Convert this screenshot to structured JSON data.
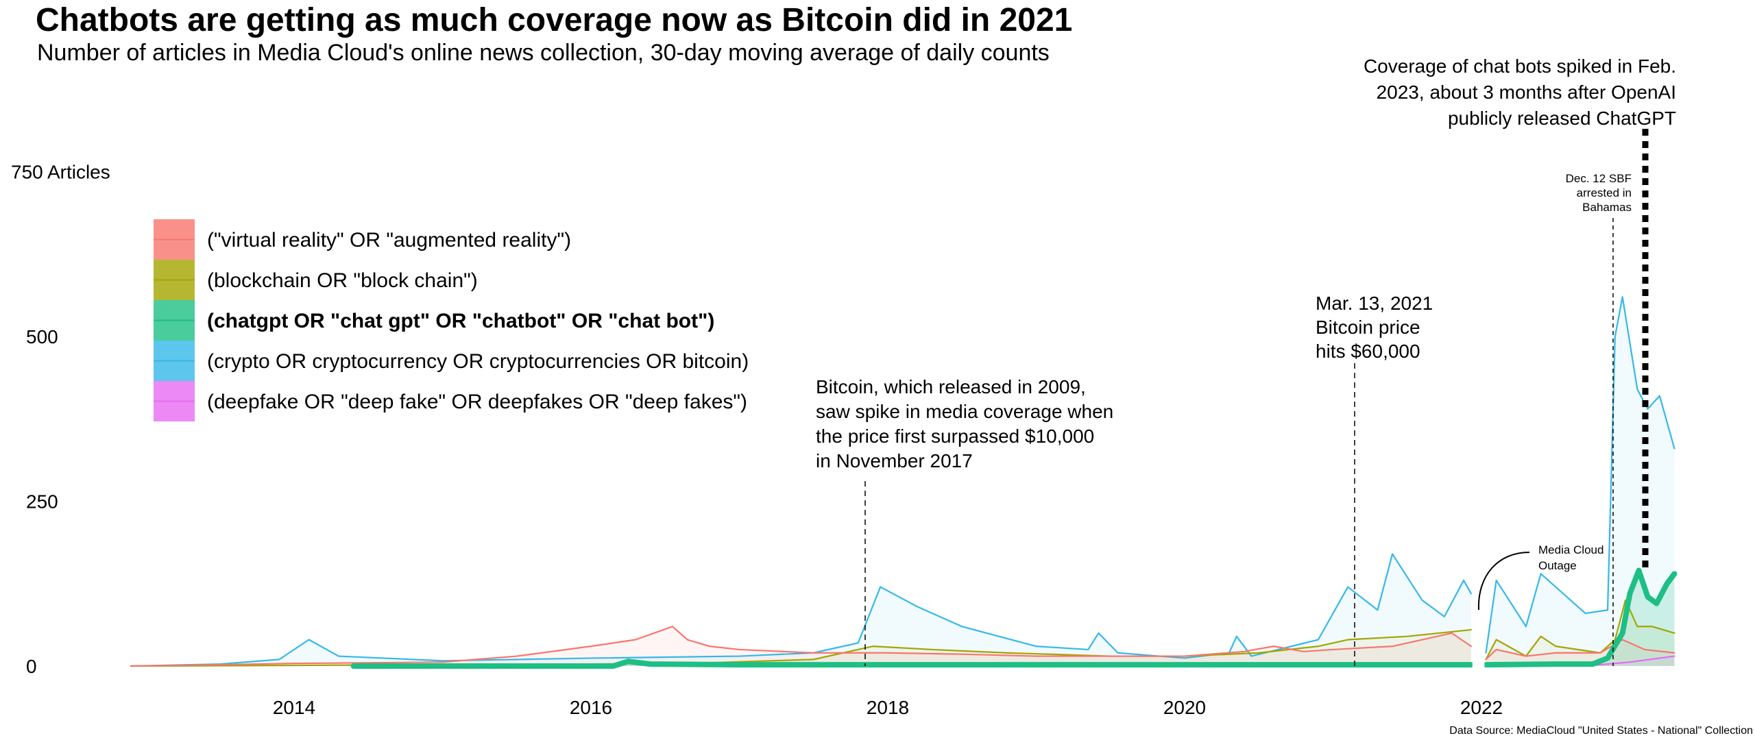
{
  "chart_data": {
    "type": "line",
    "title": "Chatbots are getting as much coverage now as Bitcoin did in 2021",
    "subtitle": "Number of articles in Media Cloud's online news collection, 30-day moving average of daily counts",
    "ylabel": "",
    "xlabel": "",
    "xlim": [
      2012.85,
      2023.35
    ],
    "ylim": [
      0,
      800
    ],
    "x_ticks": [
      "2014",
      "2016",
      "2018",
      "2020",
      "2022"
    ],
    "x_tick_values": [
      2014,
      2016,
      2018,
      2020,
      2022
    ],
    "y_ticks": [
      "0",
      "250",
      "500",
      "750 Articles"
    ],
    "y_tick_values": [
      0,
      250,
      500,
      750
    ],
    "grid": false,
    "legend_placement": "top-left",
    "series": [
      {
        "name": "(\"virtual reality\" OR \"augmented reality\")",
        "color": "#F8766D",
        "bold": false,
        "x": [
          2012.9,
          2013.5,
          2014.0,
          2014.5,
          2015.0,
          2015.5,
          2016.0,
          2016.3,
          2016.55,
          2016.65,
          2016.8,
          2017.0,
          2017.5,
          2018.0,
          2018.5,
          2019.0,
          2019.5,
          2020.0,
          2020.4,
          2020.6,
          2020.8,
          2021.0,
          2021.4,
          2021.8,
          2021.93,
          null,
          2022.03,
          2022.1,
          2022.3,
          2022.5,
          2022.8,
          2022.95,
          2023.1,
          2023.3
        ],
        "y": [
          0,
          2,
          4,
          5,
          6,
          15,
          30,
          40,
          60,
          40,
          30,
          25,
          20,
          20,
          18,
          15,
          15,
          15,
          22,
          30,
          22,
          25,
          30,
          50,
          30,
          null,
          10,
          25,
          15,
          20,
          20,
          40,
          25,
          20
        ]
      },
      {
        "name": "(blockchain OR \"block chain\")",
        "color": "#A3A500",
        "bold": false,
        "x": [
          2012.9,
          2014.0,
          2015.0,
          2016.0,
          2016.8,
          2017.5,
          2017.9,
          2018.3,
          2018.8,
          2019.5,
          2020.0,
          2020.5,
          2020.9,
          2021.1,
          2021.5,
          2021.93,
          null,
          2022.03,
          2022.1,
          2022.3,
          2022.4,
          2022.5,
          2022.8,
          2022.9,
          2022.97,
          2023.05,
          2023.15,
          2023.3
        ],
        "y": [
          0,
          1,
          2,
          3,
          5,
          10,
          30,
          25,
          20,
          15,
          15,
          20,
          30,
          40,
          45,
          55,
          null,
          10,
          40,
          15,
          45,
          30,
          20,
          40,
          100,
          60,
          60,
          50
        ]
      },
      {
        "name": "(chatgpt OR \"chat gpt\" OR \"chatbot\" OR \"chat bot\")",
        "color": "#1DBF84",
        "bold": true,
        "x": [
          2014.4,
          2016.15,
          2016.25,
          2016.4,
          2017.0,
          2019.0,
          2021.0,
          2021.93,
          null,
          2022.03,
          2022.5,
          2022.75,
          2022.85,
          2022.95,
          2023.0,
          2023.06,
          2023.12,
          2023.18,
          2023.25,
          2023.3
        ],
        "y": [
          0,
          0,
          7,
          3,
          2,
          2,
          2,
          2,
          null,
          2,
          3,
          3,
          12,
          50,
          110,
          145,
          105,
          95,
          125,
          140
        ]
      },
      {
        "name": "(crypto OR cryptocurrency OR cryptocurrencies OR bitcoin)",
        "color": "#35B8E8",
        "bold": false,
        "x": [
          2012.9,
          2013.5,
          2013.9,
          2014.1,
          2014.3,
          2015.0,
          2016.0,
          2017.0,
          2017.5,
          2017.8,
          2017.95,
          2018.2,
          2018.5,
          2019.0,
          2019.35,
          2019.42,
          2019.55,
          2020.0,
          2020.3,
          2020.35,
          2020.45,
          2020.9,
          2021.1,
          2021.3,
          2021.4,
          2021.6,
          2021.75,
          2021.88,
          2021.93,
          null,
          2022.03,
          2022.1,
          2022.3,
          2022.4,
          2022.7,
          2022.85,
          2022.9,
          2022.95,
          2023.05,
          2023.12,
          2023.2,
          2023.3
        ],
        "y": [
          0,
          3,
          10,
          40,
          15,
          8,
          12,
          15,
          20,
          35,
          120,
          90,
          60,
          30,
          25,
          50,
          20,
          12,
          20,
          45,
          15,
          40,
          120,
          85,
          170,
          100,
          75,
          130,
          110,
          null,
          20,
          130,
          60,
          140,
          80,
          85,
          500,
          560,
          420,
          390,
          410,
          330
        ]
      },
      {
        "name": "(deepfake OR \"deep fake\" OR deepfakes OR \"deep fakes\")",
        "color": "#E76BF3",
        "bold": false,
        "x": [
          2017.9,
          2019.0,
          2021.0,
          2021.93,
          null,
          2022.03,
          2022.8,
          2023.0,
          2023.3
        ],
        "y": [
          0,
          1,
          1,
          1,
          null,
          1,
          2,
          6,
          15
        ]
      }
    ],
    "annotations": {
      "chatgpt": [
        "Coverage of chat bots spiked in Feb.",
        "2023, about 3 months after OpenAI",
        "publicly released ChatGPT"
      ],
      "sbf": [
        "Dec. 12 SBF",
        "arrested in",
        "Bahamas"
      ],
      "bitcoin_60k": [
        "Mar. 13, 2021",
        "Bitcoin price",
        "hits $60,000"
      ],
      "bitcoin_2017": [
        "Bitcoin, which released in 2009,",
        "saw spike in media coverage when",
        "the price first surpassed $10,000",
        "in November 2017"
      ],
      "outage": [
        "Media Cloud",
        "Outage"
      ]
    },
    "source": "Data Source: MediaCloud \"United States - National\" Collection"
  }
}
